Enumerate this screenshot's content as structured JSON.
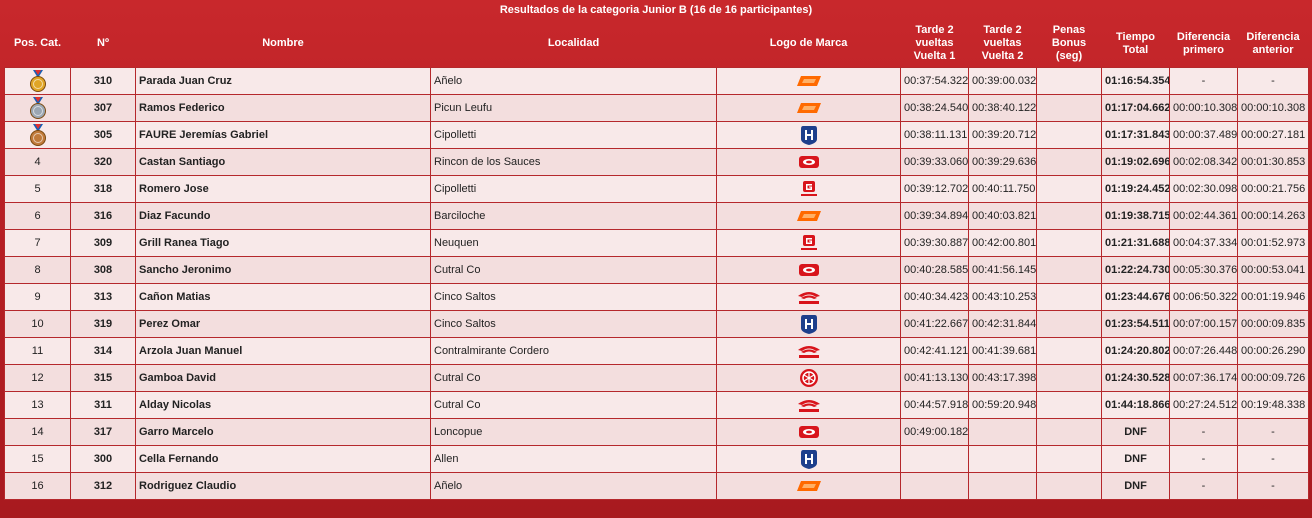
{
  "title": "Resultados de la categoria Junior B (16 de 16 participantes)",
  "columns": [
    "Pos. Cat.",
    "Nº",
    "Nombre",
    "Localidad",
    "Logo de Marca",
    "Tarde 2 vueltas Vuelta 1",
    "Tarde 2 vueltas Vuelta 2",
    "Penas Bonus (seg)",
    "Tiempo Total",
    "Diferencia primero",
    "Diferencia anterior"
  ],
  "rows": [
    {
      "pos": null,
      "number": 310,
      "name": "Parada Juan Cruz",
      "city": "Añelo",
      "lap1": "00:37:54.322",
      "lap2": "00:39:00.032",
      "total": "01:16:54.354",
      "gap_first": "-",
      "gap_prev": "-"
    },
    {
      "pos": null,
      "number": 307,
      "name": "Ramos Federico",
      "city": "Picun Leufu",
      "lap1": "00:38:24.540",
      "lap2": "00:38:40.122",
      "total": "01:17:04.662",
      "gap_first": "00:00:10.308",
      "gap_prev": "00:00:10.308"
    },
    {
      "pos": null,
      "number": 305,
      "name": "FAURE Jeremías Gabriel",
      "city": "Cipolletti",
      "lap1": "00:38:11.131",
      "lap2": "00:39:20.712",
      "total": "01:17:31.843",
      "gap_first": "00:00:37.489",
      "gap_prev": "00:00:27.181"
    },
    {
      "pos": 4,
      "number": 320,
      "name": "Castan Santiago",
      "city": "Rincon de los Sauces",
      "lap1": "00:39:33.060",
      "lap2": "00:39:29.636",
      "total": "01:19:02.696",
      "gap_first": "00:02:08.342",
      "gap_prev": "00:01:30.853"
    },
    {
      "pos": 5,
      "number": 318,
      "name": "Romero Jose",
      "city": "Cipolletti",
      "lap1": "00:39:12.702",
      "lap2": "00:40:11.750",
      "total": "01:19:24.452",
      "gap_first": "00:02:30.098",
      "gap_prev": "00:00:21.756"
    },
    {
      "pos": 6,
      "number": 316,
      "name": "Diaz Facundo",
      "city": "Barciloche",
      "lap1": "00:39:34.894",
      "lap2": "00:40:03.821",
      "total": "01:19:38.715",
      "gap_first": "00:02:44.361",
      "gap_prev": "00:00:14.263"
    },
    {
      "pos": 7,
      "number": 309,
      "name": "Grill Ranea Tiago",
      "city": "Neuquen",
      "lap1": "00:39:30.887",
      "lap2": "00:42:00.801",
      "total": "01:21:31.688",
      "gap_first": "00:04:37.334",
      "gap_prev": "00:01:52.973"
    },
    {
      "pos": 8,
      "number": 308,
      "name": "Sancho Jeronimo",
      "city": "Cutral Co",
      "lap1": "00:40:28.585",
      "lap2": "00:41:56.145",
      "total": "01:22:24.730",
      "gap_first": "00:05:30.376",
      "gap_prev": "00:00:53.041"
    },
    {
      "pos": 9,
      "number": 313,
      "name": "Cañon Matias",
      "city": "Cinco Saltos",
      "lap1": "00:40:34.423",
      "lap2": "00:43:10.253",
      "total": "01:23:44.676",
      "gap_first": "00:06:50.322",
      "gap_prev": "00:01:19.946"
    },
    {
      "pos": 10,
      "number": 319,
      "name": "Perez Omar",
      "city": "Cinco Saltos",
      "lap1": "00:41:22.667",
      "lap2": "00:42:31.844",
      "total": "01:23:54.511",
      "gap_first": "00:07:00.157",
      "gap_prev": "00:00:09.835"
    },
    {
      "pos": 11,
      "number": 314,
      "name": "Arzola Juan Manuel",
      "city": "Contralmirante Cordero",
      "lap1": "00:42:41.121",
      "lap2": "00:41:39.681",
      "total": "01:24:20.802",
      "gap_first": "00:07:26.448",
      "gap_prev": "00:00:26.290"
    },
    {
      "pos": 12,
      "number": 315,
      "name": "Gamboa David",
      "city": "Cutral Co",
      "lap1": "00:41:13.130",
      "lap2": "00:43:17.398",
      "total": "01:24:30.528",
      "gap_first": "00:07:36.174",
      "gap_prev": "00:00:09.726"
    },
    {
      "pos": 13,
      "number": 311,
      "name": "Alday Nicolas",
      "city": "Cutral Co",
      "lap1": "00:44:57.918",
      "lap2": "00:59:20.948",
      "total": "01:44:18.866",
      "gap_first": "00:27:24.512",
      "gap_prev": "00:19:48.338"
    },
    {
      "pos": 14,
      "number": 317,
      "name": "Garro Marcelo",
      "city": "Loncopue",
      "lap1": "00:49:00.182",
      "total": "DNF",
      "gap_first": "-",
      "gap_prev": "-"
    },
    {
      "pos": 15,
      "number": 300,
      "name": "Cella Fernando",
      "city": "Allen",
      "total": "DNF",
      "gap_first": "-",
      "gap_prev": "-"
    },
    {
      "pos": 16,
      "number": 312,
      "name": "Rodriguez Claudio",
      "city": "Añelo",
      "total": "DNF",
      "gap_first": "-",
      "gap_prev": "-"
    }
  ]
}
